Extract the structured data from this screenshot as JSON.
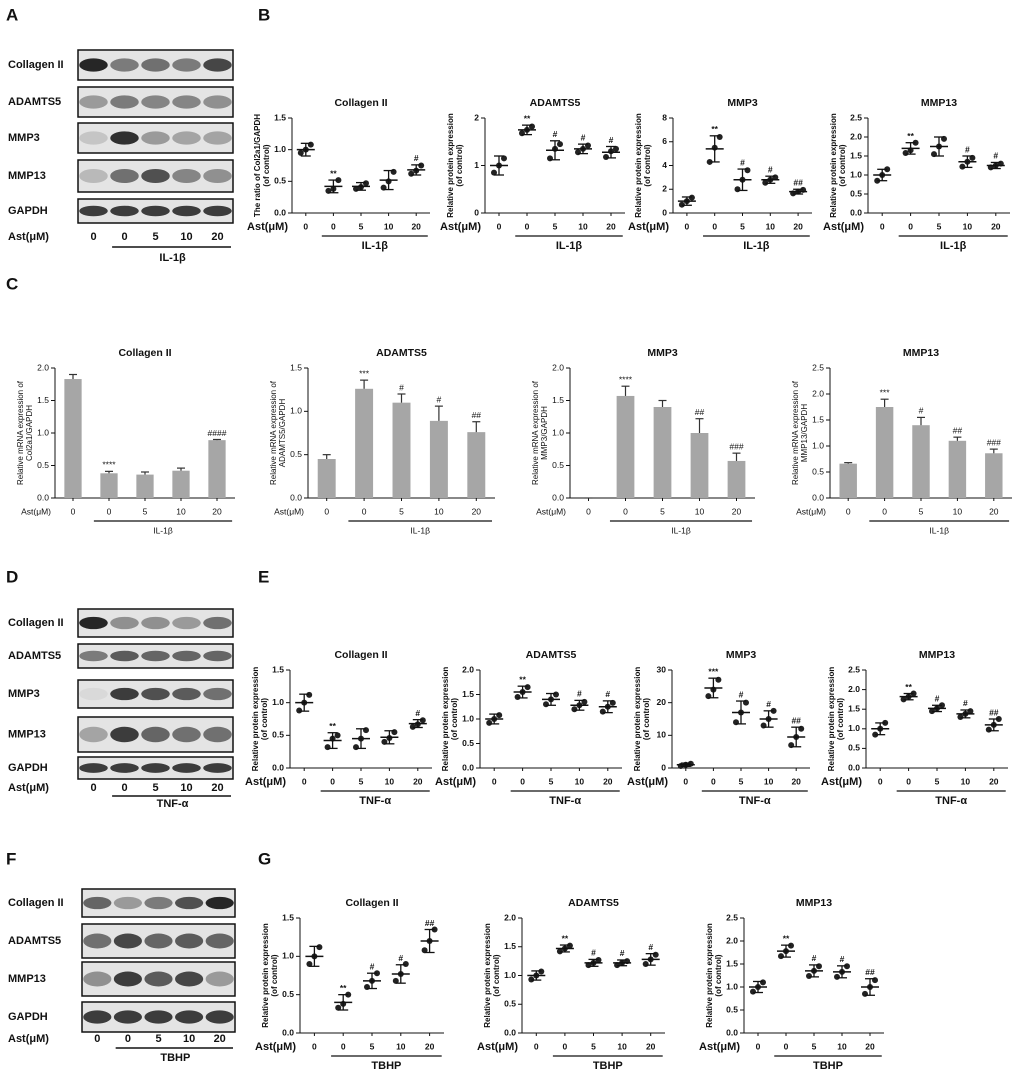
{
  "panels": [
    "A",
    "B",
    "C",
    "D",
    "E",
    "F",
    "G"
  ],
  "blots": [
    {
      "rows": [
        "Collagen II",
        "ADAMTS5",
        "MMP3",
        "MMP13",
        "GAPDH"
      ],
      "x_label": "Ast(μM)",
      "categories": [
        "0",
        "0",
        "5",
        "10",
        "20"
      ],
      "group_label": "IL-1β"
    },
    {
      "rows": [
        "Collagen II",
        "ADAMTS5",
        "MMP3",
        "MMP13",
        "GAPDH"
      ],
      "x_label": "Ast(μM)",
      "categories": [
        "0",
        "0",
        "5",
        "10",
        "20"
      ],
      "group_label": "TNF-α"
    },
    {
      "rows": [
        "Collagen II",
        "ADAMTS5",
        "MMP13",
        "GAPDH"
      ],
      "x_label": "Ast(μM)",
      "categories": [
        "0",
        "0",
        "5",
        "10",
        "20"
      ],
      "group_label": "TBHP"
    }
  ],
  "chart_data": [
    {
      "type": "dot",
      "title": "Collagen II",
      "y_label": [
        "The ratio of Col2a1/GAPDH",
        "(of control)"
      ],
      "x_label": "Ast(μM)",
      "categories": [
        "0",
        "0",
        "5",
        "10",
        "20"
      ],
      "group_label": "IL-1β",
      "values": [
        1.0,
        0.42,
        0.42,
        0.52,
        0.68
      ],
      "errors": [
        0.1,
        0.1,
        0.06,
        0.15,
        0.08
      ],
      "points": [
        [
          0.95,
          1.0,
          1.08
        ],
        [
          0.35,
          0.38,
          0.52
        ],
        [
          0.38,
          0.41,
          0.47
        ],
        [
          0.4,
          0.5,
          0.65
        ],
        [
          0.62,
          0.67,
          0.75
        ]
      ],
      "annotations": [
        null,
        "**",
        null,
        null,
        "#"
      ],
      "ylim": [
        0,
        1.5
      ],
      "yticks": [
        {
          "value": 0,
          "label": "0.0"
        },
        {
          "value": 0.5,
          "label": "0.5"
        },
        {
          "value": 1,
          "label": "1.0"
        },
        {
          "value": 1.5,
          "label": "1.5"
        }
      ],
      "color": "#222222"
    },
    {
      "type": "dot",
      "title": "ADAMTS5",
      "y_label": [
        "Relative protein expression",
        "(of control)"
      ],
      "x_label": "Ast(μM)",
      "categories": [
        "0",
        "0",
        "5",
        "10",
        "20"
      ],
      "group_label": "IL-1β",
      "values": [
        1.0,
        1.75,
        1.32,
        1.35,
        1.28
      ],
      "errors": [
        0.2,
        0.1,
        0.2,
        0.1,
        0.12
      ],
      "points": [
        [
          0.85,
          1.0,
          1.15
        ],
        [
          1.68,
          1.75,
          1.82
        ],
        [
          1.15,
          1.35,
          1.45
        ],
        [
          1.28,
          1.35,
          1.42
        ],
        [
          1.18,
          1.3,
          1.35
        ]
      ],
      "annotations": [
        null,
        "**",
        "#",
        "#",
        "#"
      ],
      "ylim": [
        0,
        2
      ],
      "yticks": [
        0,
        1,
        2
      ],
      "color": "#222222"
    },
    {
      "type": "dot",
      "title": "MMP3",
      "y_label": [
        "Relative protein expression",
        "(of control)"
      ],
      "x_label": "Ast(μM)",
      "categories": [
        "0",
        "0",
        "5",
        "10",
        "20"
      ],
      "group_label": "IL-1β",
      "values": [
        1.0,
        5.4,
        2.8,
        2.8,
        1.8
      ],
      "errors": [
        0.35,
        1.1,
        0.9,
        0.3,
        0.2
      ],
      "points": [
        [
          0.7,
          1.0,
          1.3
        ],
        [
          4.3,
          5.5,
          6.4
        ],
        [
          2.0,
          2.8,
          3.6
        ],
        [
          2.55,
          2.8,
          3.0
        ],
        [
          1.65,
          1.8,
          1.95
        ]
      ],
      "annotations": [
        null,
        "**",
        "#",
        "#",
        "##"
      ],
      "ylim": [
        0,
        8
      ],
      "yticks": [
        0,
        2,
        4,
        6,
        8
      ],
      "color": "#222222"
    },
    {
      "type": "dot",
      "title": "MMP13",
      "y_label": [
        "Relative protein expression",
        "(of control)"
      ],
      "x_label": "Ast(μM)",
      "categories": [
        "0",
        "0",
        "5",
        "10",
        "20"
      ],
      "group_label": "IL-1β",
      "values": [
        1.0,
        1.7,
        1.75,
        1.35,
        1.25
      ],
      "errors": [
        0.15,
        0.15,
        0.25,
        0.15,
        0.08
      ],
      "points": [
        [
          0.85,
          1.0,
          1.15
        ],
        [
          1.58,
          1.65,
          1.85
        ],
        [
          1.55,
          1.75,
          1.95
        ],
        [
          1.22,
          1.35,
          1.45
        ],
        [
          1.2,
          1.25,
          1.3
        ]
      ],
      "annotations": [
        null,
        "**",
        null,
        "#",
        "#"
      ],
      "ylim": [
        0,
        2.5
      ],
      "yticks": [
        {
          "value": 0,
          "label": "0.0"
        },
        {
          "value": 0.5,
          "label": "0.5"
        },
        {
          "value": 1,
          "label": "1.0"
        },
        {
          "value": 1.5,
          "label": "1.5"
        },
        {
          "value": 2,
          "label": "2.0"
        },
        {
          "value": 2.5,
          "label": "2.5"
        }
      ],
      "color": "#222222"
    },
    {
      "type": "bar",
      "title": "Collagen II",
      "y_label": [
        "Relative mRNA expression of",
        "Col2a1/GAPDH"
      ],
      "x_label": "Ast(μM)",
      "categories": [
        "0",
        "0",
        "5",
        "10",
        "20"
      ],
      "group_label": "IL-1β",
      "values": [
        1.83,
        0.38,
        0.36,
        0.42,
        0.89
      ],
      "errors": [
        0.07,
        0.03,
        0.04,
        0.04,
        0.01
      ],
      "annotations": [
        null,
        "****",
        null,
        null,
        "####"
      ],
      "ylim": [
        0,
        2
      ],
      "yticks": [
        {
          "value": 0,
          "label": "0.0"
        },
        {
          "value": 0.5,
          "label": "0.5"
        },
        {
          "value": 1,
          "label": "1.0"
        },
        {
          "value": 1.5,
          "label": "1.5"
        },
        {
          "value": 2,
          "label": "2.0"
        }
      ],
      "color": "#a6a6a6"
    },
    {
      "type": "bar",
      "title": "ADAMTS5",
      "y_label": [
        "Relative mRNA expression of",
        "ADAMTS5/GAPDH"
      ],
      "x_label": "Ast(μM)",
      "categories": [
        "0",
        "0",
        "5",
        "10",
        "20"
      ],
      "group_label": "IL-1β",
      "values": [
        0.45,
        1.26,
        1.1,
        0.89,
        0.76
      ],
      "errors": [
        0.05,
        0.1,
        0.1,
        0.17,
        0.12
      ],
      "annotations": [
        null,
        "***",
        "#",
        "#",
        "##"
      ],
      "ylim": [
        0,
        1.5
      ],
      "yticks": [
        {
          "value": 0,
          "label": "0.0"
        },
        {
          "value": 0.5,
          "label": "0.5"
        },
        {
          "value": 1,
          "label": "1.0"
        },
        {
          "value": 1.5,
          "label": "1.5"
        }
      ],
      "color": "#a6a6a6"
    },
    {
      "type": "bar",
      "title": "MMP3",
      "y_label": [
        "Relative mRNA expression of",
        "MMP3/GAPDH"
      ],
      "x_label": "Ast(μM)",
      "categories": [
        "0",
        "0",
        "5",
        "10",
        "20"
      ],
      "group_label": "IL-1β",
      "values": [
        0,
        1.57,
        1.4,
        1.0,
        0.57
      ],
      "errors": [
        0,
        0.15,
        0.1,
        0.22,
        0.12
      ],
      "annotations": [
        null,
        "****",
        null,
        "##",
        "###"
      ],
      "ylim": [
        0,
        2
      ],
      "yticks": [
        {
          "value": 0,
          "label": "0.0"
        },
        {
          "value": 0.5,
          "label": "0.5"
        },
        {
          "value": 1,
          "label": "1.0"
        },
        {
          "value": 1.5,
          "label": "1.5"
        },
        {
          "value": 2,
          "label": "2.0"
        }
      ],
      "color": "#a6a6a6"
    },
    {
      "type": "bar",
      "title": "MMP13",
      "y_label": [
        "Relative mRNA expression of",
        "MMP13/GAPDH"
      ],
      "x_label": "Ast(μM)",
      "categories": [
        "0",
        "0",
        "5",
        "10",
        "20"
      ],
      "group_label": "IL-1β",
      "values": [
        0.66,
        1.75,
        1.4,
        1.1,
        0.86
      ],
      "errors": [
        0.02,
        0.15,
        0.15,
        0.07,
        0.08
      ],
      "annotations": [
        null,
        "***",
        "#",
        "##",
        "###"
      ],
      "ylim": [
        0,
        2.5
      ],
      "yticks": [
        {
          "value": 0,
          "label": "0.0"
        },
        {
          "value": 0.5,
          "label": "0.5"
        },
        {
          "value": 1,
          "label": "1.0"
        },
        {
          "value": 1.5,
          "label": "1.5"
        },
        {
          "value": 2,
          "label": "2.0"
        },
        {
          "value": 2.5,
          "label": "2.5"
        }
      ],
      "color": "#a6a6a6"
    },
    {
      "type": "dot",
      "title": "Collagen II",
      "y_label": [
        "Relative protein expression",
        "(of control)"
      ],
      "x_label": "Ast(μM)",
      "categories": [
        "0",
        "0",
        "5",
        "10",
        "20"
      ],
      "group_label": "TNF-α",
      "values": [
        1.0,
        0.42,
        0.45,
        0.47,
        0.68
      ],
      "errors": [
        0.13,
        0.12,
        0.15,
        0.1,
        0.06
      ],
      "points": [
        [
          0.88,
          1.0,
          1.12
        ],
        [
          0.32,
          0.45,
          0.5
        ],
        [
          0.32,
          0.45,
          0.58
        ],
        [
          0.4,
          0.46,
          0.55
        ],
        [
          0.63,
          0.67,
          0.73
        ]
      ],
      "annotations": [
        null,
        "**",
        null,
        null,
        "#"
      ],
      "ylim": [
        0,
        1.5
      ],
      "yticks": [
        {
          "value": 0,
          "label": "0.0"
        },
        {
          "value": 0.5,
          "label": "0.5"
        },
        {
          "value": 1,
          "label": "1.0"
        },
        {
          "value": 1.5,
          "label": "1.5"
        }
      ],
      "color": "#222222"
    },
    {
      "type": "dot",
      "title": "ADAMTS5",
      "y_label": [
        "Relative protein expression",
        "(of control)"
      ],
      "x_label": "Ast(μM)",
      "categories": [
        "0",
        "0",
        "5",
        "10",
        "20"
      ],
      "group_label": "TNF-α",
      "values": [
        1.0,
        1.55,
        1.4,
        1.28,
        1.25
      ],
      "errors": [
        0.1,
        0.12,
        0.12,
        0.1,
        0.12
      ],
      "points": [
        [
          0.92,
          1.0,
          1.08
        ],
        [
          1.45,
          1.55,
          1.65
        ],
        [
          1.3,
          1.4,
          1.5
        ],
        [
          1.2,
          1.28,
          1.35
        ],
        [
          1.15,
          1.25,
          1.33
        ]
      ],
      "annotations": [
        null,
        "**",
        null,
        "#",
        "#"
      ],
      "ylim": [
        0,
        2
      ],
      "yticks": [
        {
          "value": 0,
          "label": "0.0"
        },
        {
          "value": 0.5,
          "label": "0.5"
        },
        {
          "value": 1,
          "label": "1.0"
        },
        {
          "value": 1.5,
          "label": "1.5"
        },
        {
          "value": 2,
          "label": "2.0"
        }
      ],
      "color": "#222222"
    },
    {
      "type": "dot",
      "title": "MMP3",
      "y_label": [
        "Relative protein expression",
        "(of control)"
      ],
      "x_label": "Ast(μM)",
      "categories": [
        "0",
        "0",
        "5",
        "10",
        "20"
      ],
      "group_label": "TNF-α",
      "values": [
        1,
        24.5,
        17,
        15,
        9.5
      ],
      "errors": [
        0.5,
        3,
        3.5,
        2.5,
        3
      ],
      "points": [
        [
          0.6,
          1.0,
          1.3
        ],
        [
          22,
          24,
          27
        ],
        [
          14,
          17,
          20
        ],
        [
          13,
          15,
          17.5
        ],
        [
          7,
          9.5,
          12
        ]
      ],
      "annotations": [
        null,
        "***",
        "#",
        "#",
        "##"
      ],
      "ylim": [
        0,
        30
      ],
      "yticks": [
        0,
        10,
        20,
        30
      ],
      "color": "#222222"
    },
    {
      "type": "dot",
      "title": "MMP13",
      "y_label": [
        "Relative protein expression",
        "(of control)"
      ],
      "x_label": "Ast(μM)",
      "categories": [
        "0",
        "0",
        "5",
        "10",
        "20"
      ],
      "group_label": "TNF-α",
      "values": [
        1.0,
        1.82,
        1.52,
        1.38,
        1.1
      ],
      "errors": [
        0.15,
        0.08,
        0.08,
        0.1,
        0.15
      ],
      "points": [
        [
          0.85,
          1.0,
          1.15
        ],
        [
          1.75,
          1.82,
          1.9
        ],
        [
          1.45,
          1.52,
          1.6
        ],
        [
          1.3,
          1.38,
          1.45
        ],
        [
          0.98,
          1.1,
          1.25
        ]
      ],
      "annotations": [
        null,
        "**",
        "#",
        "#",
        "##"
      ],
      "ylim": [
        0,
        2.5
      ],
      "yticks": [
        {
          "value": 0,
          "label": "0.0"
        },
        {
          "value": 0.5,
          "label": "0.5"
        },
        {
          "value": 1,
          "label": "1.0"
        },
        {
          "value": 1.5,
          "label": "1.5"
        },
        {
          "value": 2,
          "label": "2.0"
        },
        {
          "value": 2.5,
          "label": "2.5"
        }
      ],
      "color": "#222222"
    },
    {
      "type": "dot",
      "title": "Collagen II",
      "y_label": [
        "Relative protein expression",
        "(of control)"
      ],
      "x_label": "Ast(μM)",
      "categories": [
        "0",
        "0",
        "5",
        "10",
        "20"
      ],
      "group_label": "TBHP",
      "values": [
        1.0,
        0.4,
        0.68,
        0.77,
        1.2
      ],
      "errors": [
        0.13,
        0.1,
        0.1,
        0.12,
        0.15
      ],
      "points": [
        [
          0.9,
          1.0,
          1.12
        ],
        [
          0.33,
          0.38,
          0.5
        ],
        [
          0.6,
          0.68,
          0.78
        ],
        [
          0.68,
          0.77,
          0.9
        ],
        [
          1.08,
          1.2,
          1.35
        ]
      ],
      "annotations": [
        null,
        "**",
        "#",
        "#",
        "##"
      ],
      "ylim": [
        0,
        1.5
      ],
      "yticks": [
        {
          "value": 0,
          "label": "0.0"
        },
        {
          "value": 0.5,
          "label": "0.5"
        },
        {
          "value": 1,
          "label": "1.0"
        },
        {
          "value": 1.5,
          "label": "1.5"
        }
      ],
      "color": "#222222"
    },
    {
      "type": "dot",
      "title": "ADAMTS5",
      "y_label": [
        "Relative protein expression",
        "(of control)"
      ],
      "x_label": "Ast(μM)",
      "categories": [
        "0",
        "0",
        "5",
        "10",
        "20"
      ],
      "group_label": "TBHP",
      "values": [
        1.0,
        1.47,
        1.22,
        1.22,
        1.28
      ],
      "errors": [
        0.08,
        0.06,
        0.06,
        0.05,
        0.1
      ],
      "points": [
        [
          0.93,
          1.0,
          1.07
        ],
        [
          1.42,
          1.47,
          1.52
        ],
        [
          1.18,
          1.22,
          1.27
        ],
        [
          1.18,
          1.22,
          1.25
        ],
        [
          1.2,
          1.28,
          1.36
        ]
      ],
      "annotations": [
        null,
        "**",
        "#",
        "#",
        "#"
      ],
      "ylim": [
        0,
        2
      ],
      "yticks": [
        {
          "value": 0,
          "label": "0.0"
        },
        {
          "value": 0.5,
          "label": "0.5"
        },
        {
          "value": 1,
          "label": "1.0"
        },
        {
          "value": 1.5,
          "label": "1.5"
        },
        {
          "value": 2,
          "label": "2.0"
        }
      ],
      "color": "#222222"
    },
    {
      "type": "dot",
      "title": "MMP13",
      "y_label": [
        "Relative protein expression",
        "(of control)"
      ],
      "x_label": "Ast(μM)",
      "categories": [
        "0",
        "0",
        "5",
        "10",
        "20"
      ],
      "group_label": "TBHP",
      "values": [
        1.0,
        1.78,
        1.35,
        1.33,
        1.0
      ],
      "errors": [
        0.12,
        0.13,
        0.13,
        0.13,
        0.18
      ],
      "points": [
        [
          0.9,
          1.0,
          1.1
        ],
        [
          1.67,
          1.78,
          1.9
        ],
        [
          1.24,
          1.35,
          1.45
        ],
        [
          1.22,
          1.33,
          1.45
        ],
        [
          0.85,
          1.0,
          1.15
        ]
      ],
      "annotations": [
        null,
        "**",
        "#",
        "#",
        "##"
      ],
      "ylim": [
        0,
        2.5
      ],
      "yticks": [
        {
          "value": 0,
          "label": "0.0"
        },
        {
          "value": 0.5,
          "label": "0.5"
        },
        {
          "value": 1,
          "label": "1.0"
        },
        {
          "value": 1.5,
          "label": "1.5"
        },
        {
          "value": 2,
          "label": "2.0"
        },
        {
          "value": 2.5,
          "label": "2.5"
        }
      ],
      "color": "#222222"
    }
  ]
}
